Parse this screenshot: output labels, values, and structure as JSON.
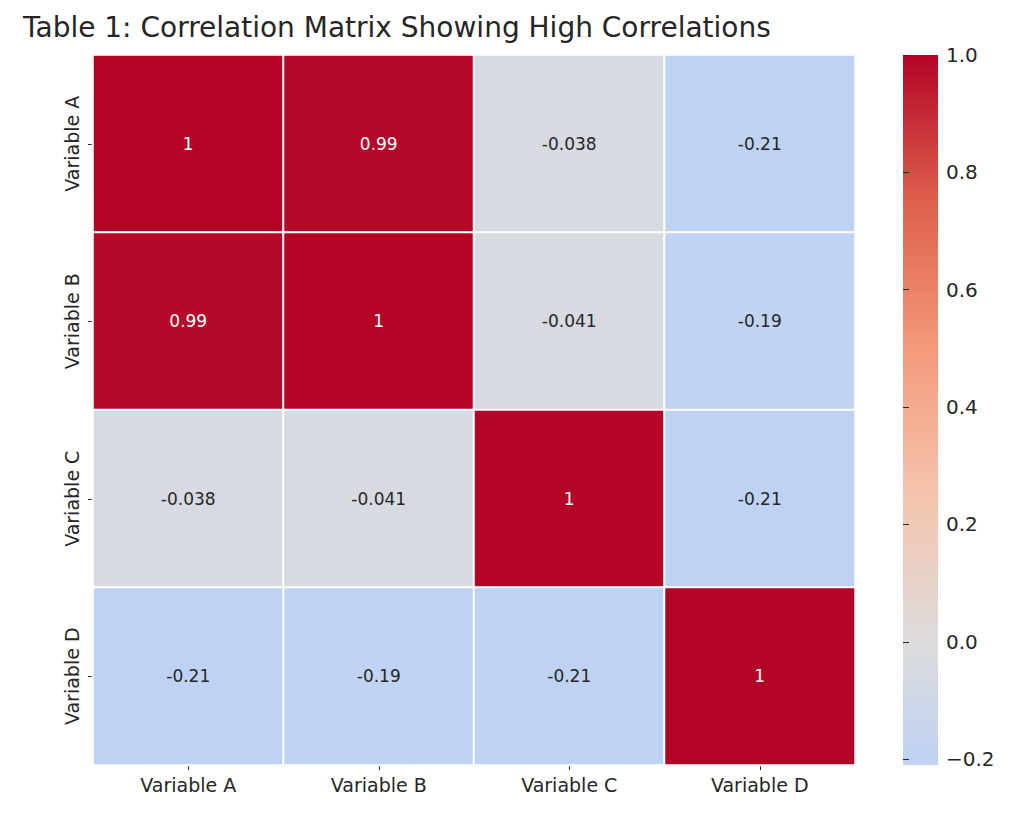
{
  "chart_data": {
    "type": "heatmap",
    "title": "Table 1: Correlation Matrix Showing High Correlations",
    "categories": [
      "Variable A",
      "Variable B",
      "Variable C",
      "Variable D"
    ],
    "y_categories": [
      "Variable A",
      "Variable B",
      "Variable C",
      "Variable D"
    ],
    "cells": [
      [
        1,
        0.99,
        -0.038,
        -0.21
      ],
      [
        0.99,
        1,
        -0.041,
        -0.19
      ],
      [
        -0.038,
        -0.041,
        1,
        -0.21
      ],
      [
        -0.21,
        -0.19,
        -0.21,
        1
      ]
    ],
    "color_range": [
      -0.21,
      1
    ],
    "color_center": 0,
    "color_ticks": [
      {
        "value": -0.2,
        "label": "−0.2"
      },
      {
        "value": 0,
        "label": "0.0"
      },
      0.2,
      0.4,
      0.6,
      0.8,
      {
        "value": 1,
        "label": "1.0"
      }
    ],
    "data_labels": true
  }
}
